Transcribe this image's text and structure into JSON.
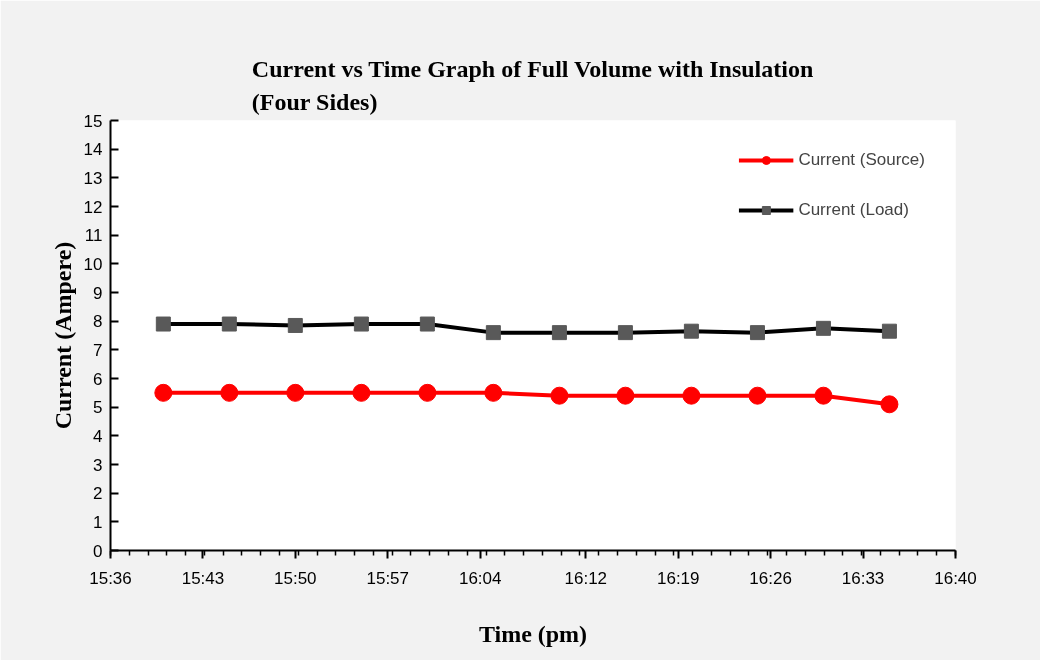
{
  "chart_data": {
    "type": "line",
    "title": "Current vs Time Graph of Full Volume with Insulation\n(Four Sides)",
    "xlabel": "Time (pm)",
    "ylabel": "Current (Ampere)",
    "x": [
      15.6667,
      15.75,
      15.8333,
      15.9167,
      16.0,
      16.0833,
      16.1667,
      16.25,
      16.3333,
      16.4167,
      16.5,
      16.5833
    ],
    "series": [
      {
        "name": "Current (Source)",
        "color": "#ff0000",
        "marker": "circle",
        "values": [
          5.5,
          5.5,
          5.5,
          5.5,
          5.5,
          5.5,
          5.4,
          5.4,
          5.4,
          5.4,
          5.4,
          5.1
        ]
      },
      {
        "name": "Current (Load)",
        "color": "#000000",
        "marker": "square",
        "values": [
          7.9,
          7.9,
          7.85,
          7.9,
          7.9,
          7.6,
          7.6,
          7.6,
          7.65,
          7.6,
          7.75,
          7.65
        ]
      }
    ],
    "xlim": [
      15.6,
      16.6667
    ],
    "xticks": [
      {
        "value": 15.6,
        "label": "15:36"
      },
      {
        "value": 15.7167,
        "label": "15:43"
      },
      {
        "value": 15.8333,
        "label": "15:50"
      },
      {
        "value": 15.95,
        "label": "15:57"
      },
      {
        "value": 16.0667,
        "label": "16:04"
      },
      {
        "value": 16.2,
        "label": "16:12"
      },
      {
        "value": 16.3167,
        "label": "16:19"
      },
      {
        "value": 16.4333,
        "label": "16:26"
      },
      {
        "value": 16.55,
        "label": "16:33"
      },
      {
        "value": 16.6667,
        "label": "16:40"
      }
    ],
    "ylim": [
      0,
      15
    ],
    "yticks": [
      0,
      1,
      2,
      3,
      4,
      5,
      6,
      7,
      8,
      9,
      10,
      11,
      12,
      13,
      14,
      15
    ],
    "grid": false,
    "legend": "top right",
    "line_style": "solid"
  }
}
